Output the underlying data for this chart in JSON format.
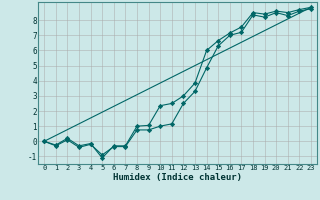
{
  "title": "",
  "xlabel": "Humidex (Indice chaleur)",
  "ylabel": "",
  "background_color": "#cce8e8",
  "grid_color": "#aaaaaa",
  "line_color": "#006666",
  "xlim": [
    -0.5,
    23.5
  ],
  "ylim": [
    -1.5,
    9.2
  ],
  "xticks": [
    0,
    1,
    2,
    3,
    4,
    5,
    6,
    7,
    8,
    9,
    10,
    11,
    12,
    13,
    14,
    15,
    16,
    17,
    18,
    19,
    20,
    21,
    22,
    23
  ],
  "yticks": [
    -1,
    0,
    1,
    2,
    3,
    4,
    5,
    6,
    7,
    8
  ],
  "series1_x": [
    0,
    1,
    2,
    3,
    4,
    5,
    6,
    7,
    8,
    9,
    10,
    11,
    12,
    13,
    14,
    15,
    16,
    17,
    18,
    19,
    20,
    21,
    22,
    23
  ],
  "series1_y": [
    0.0,
    -0.3,
    0.1,
    -0.4,
    -0.2,
    -0.9,
    -0.35,
    -0.35,
    0.75,
    0.75,
    1.0,
    1.15,
    2.5,
    3.3,
    4.85,
    6.3,
    7.0,
    7.2,
    8.35,
    8.2,
    8.5,
    8.3,
    8.6,
    8.75
  ],
  "series2_x": [
    0,
    1,
    2,
    3,
    4,
    5,
    6,
    7,
    8,
    9,
    10,
    11,
    12,
    13,
    14,
    15,
    16,
    17,
    18,
    19,
    20,
    21,
    22,
    23
  ],
  "series2_y": [
    0.0,
    -0.25,
    0.2,
    -0.3,
    -0.15,
    -1.1,
    -0.3,
    -0.3,
    1.0,
    1.05,
    2.35,
    2.5,
    3.0,
    3.85,
    6.0,
    6.65,
    7.15,
    7.55,
    8.5,
    8.4,
    8.6,
    8.5,
    8.7,
    8.85
  ],
  "series3_x": [
    0,
    23
  ],
  "series3_y": [
    0.0,
    8.85
  ]
}
